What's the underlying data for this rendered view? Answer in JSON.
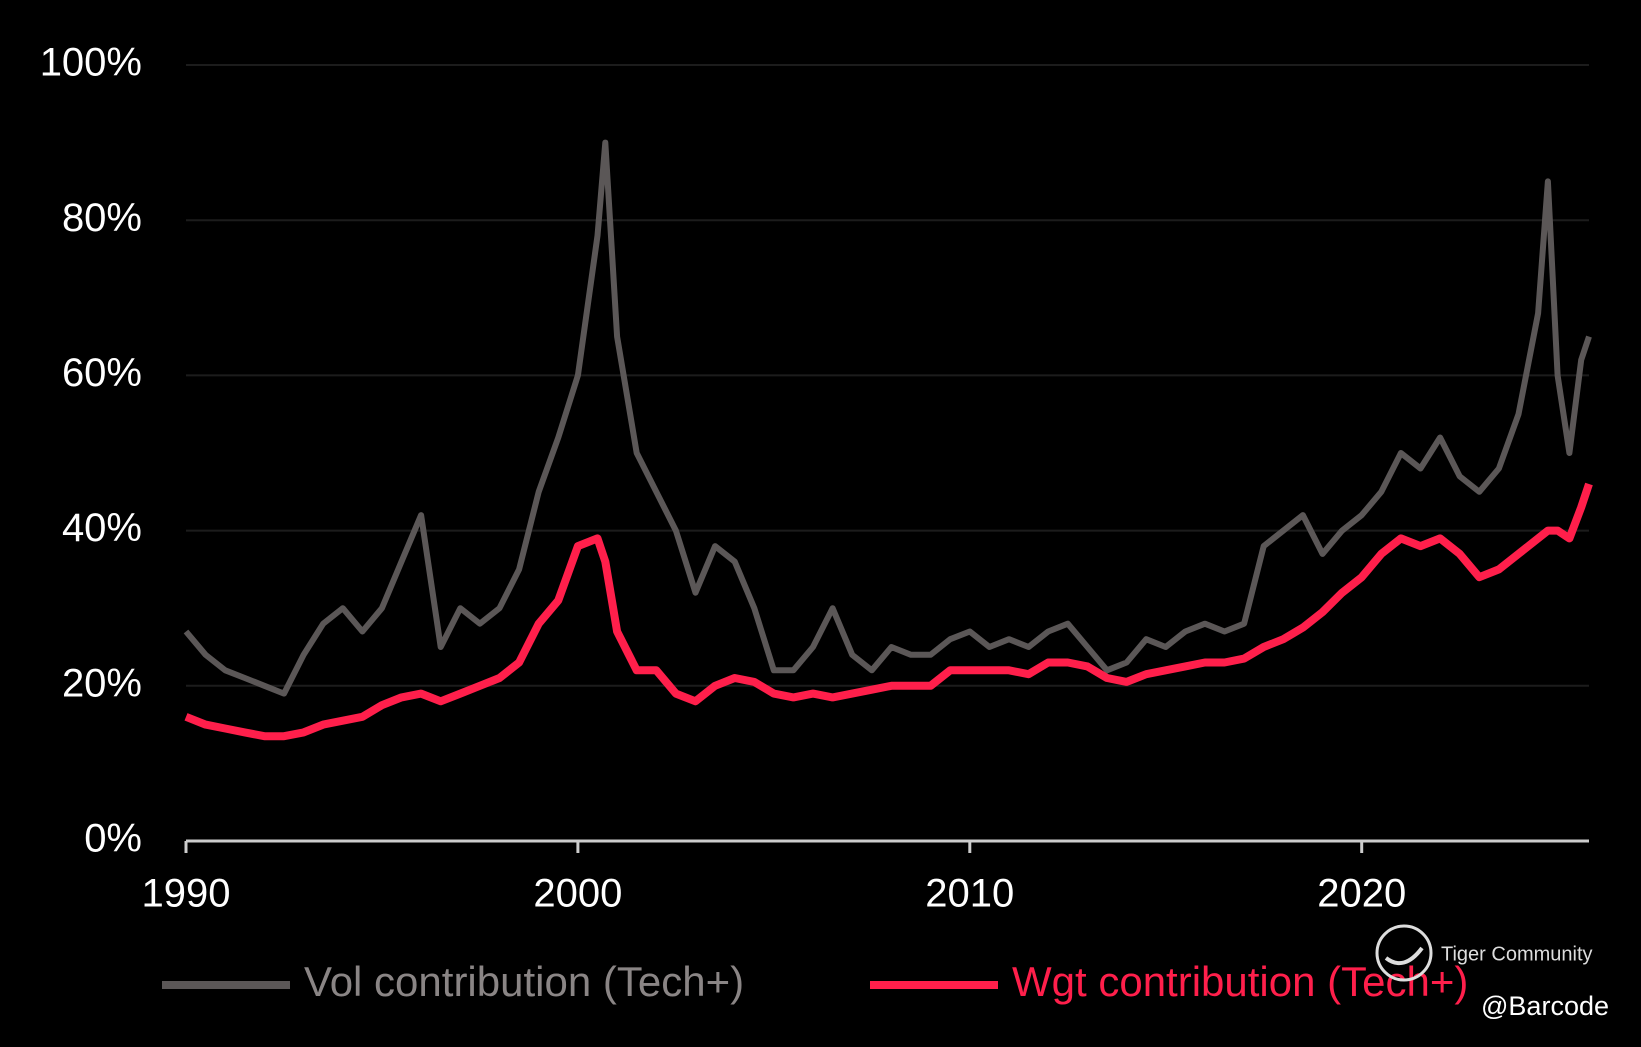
{
  "chart_data": {
    "type": "line",
    "x": [
      1990,
      1990.5,
      1991,
      1991.5,
      1992,
      1992.5,
      1993,
      1993.5,
      1994,
      1994.5,
      1995,
      1995.5,
      1996,
      1996.5,
      1997,
      1997.5,
      1998,
      1998.5,
      1999,
      1999.5,
      2000,
      2000.5,
      2000.7,
      2001,
      2001.5,
      2002,
      2002.5,
      2003,
      2003.5,
      2004,
      2004.5,
      2005,
      2005.5,
      2006,
      2006.5,
      2007,
      2007.5,
      2008,
      2008.5,
      2009,
      2009.5,
      2010,
      2010.5,
      2011,
      2011.5,
      2012,
      2012.5,
      2013,
      2013.5,
      2014,
      2014.5,
      2015,
      2015.5,
      2016,
      2016.5,
      2017,
      2017.5,
      2018,
      2018.5,
      2019,
      2019.5,
      2020,
      2020.5,
      2021,
      2021.5,
      2022,
      2022.5,
      2023,
      2023.5,
      2024,
      2024.5,
      2024.75,
      2025,
      2025.3,
      2025.6,
      2025.8
    ],
    "series": [
      {
        "name": "Vol contribution (Tech+)",
        "color": "#5b5757",
        "values": [
          27,
          24,
          22,
          21,
          20,
          19,
          24,
          28,
          30,
          27,
          30,
          36,
          42,
          25,
          30,
          28,
          30,
          35,
          45,
          52,
          60,
          78,
          90,
          65,
          50,
          45,
          40,
          32,
          38,
          36,
          30,
          22,
          22,
          25,
          30,
          24,
          22,
          25,
          24,
          24,
          26,
          27,
          25,
          26,
          25,
          27,
          28,
          25,
          22,
          23,
          26,
          25,
          27,
          28,
          27,
          28,
          38,
          40,
          42,
          37,
          40,
          42,
          45,
          50,
          48,
          52,
          47,
          45,
          48,
          55,
          68,
          85,
          60,
          50,
          62,
          65
        ]
      },
      {
        "name": "Wgt contribution (Tech+)",
        "color": "#ff1f4b",
        "values": [
          16,
          15,
          14.5,
          14,
          13.5,
          13.5,
          14,
          15,
          15.5,
          16,
          17.5,
          18.5,
          19,
          18,
          19,
          20,
          21,
          23,
          28,
          31,
          38,
          39,
          36,
          27,
          22,
          22,
          19,
          18,
          20,
          21,
          20.5,
          19,
          18.5,
          19,
          18.5,
          19,
          19.5,
          20,
          20,
          20,
          22,
          22,
          22,
          22,
          21.5,
          23,
          23,
          22.5,
          21,
          20.5,
          21.5,
          22,
          22.5,
          23,
          23,
          23.5,
          25,
          26,
          27.5,
          29.5,
          32,
          34,
          37,
          39,
          38,
          39,
          37,
          34,
          35,
          37,
          39,
          40,
          40,
          39,
          43,
          46
        ]
      }
    ],
    "xlim": [
      1990,
      2025.8
    ],
    "xticks": [
      1990,
      2000,
      2010,
      2020
    ],
    "ylim": [
      0,
      100
    ],
    "yticks": [
      {
        "value": 0,
        "label": "0%"
      },
      {
        "value": 20,
        "label": "20%"
      },
      {
        "value": 40,
        "label": "40%"
      },
      {
        "value": 60,
        "label": "60%"
      },
      {
        "value": 80,
        "label": "80%"
      },
      {
        "value": 100,
        "label": "100%"
      }
    ],
    "grid": true,
    "legend": "bottom",
    "watermark": [
      "Tiger Community",
      "@Barcode"
    ]
  }
}
